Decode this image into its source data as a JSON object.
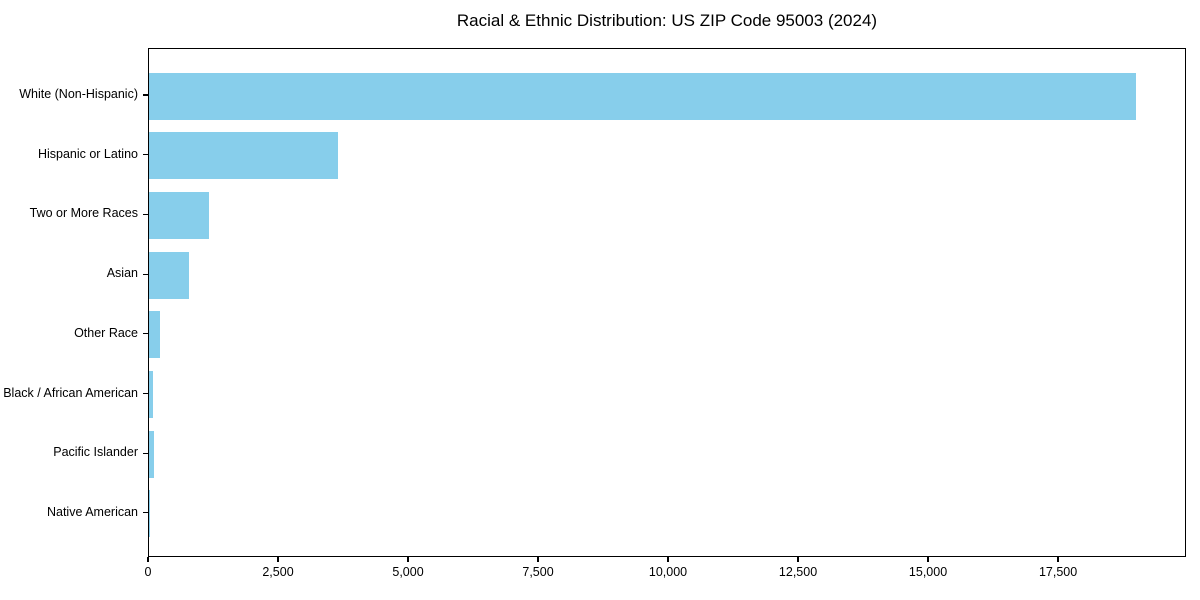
{
  "chart_data": {
    "type": "bar",
    "orientation": "horizontal",
    "title": "Racial & Ethnic Distribution: US ZIP Code 95003 (2024)",
    "categories": [
      "White (Non-Hispanic)",
      "Hispanic or Latino",
      "Two or More Races",
      "Asian",
      "Other Race",
      "Black / African American",
      "Pacific Islander",
      "Native American"
    ],
    "values": [
      19010,
      3650,
      1150,
      765,
      220,
      80,
      100,
      10
    ],
    "xlabel": "",
    "ylabel": "",
    "xlim": [
      0,
      19960
    ],
    "x_ticks": [
      0,
      2500,
      5000,
      7500,
      10000,
      12500,
      15000,
      17500
    ],
    "x_tick_labels": [
      "0",
      "2,500",
      "5,000",
      "7,500",
      "10,000",
      "12,500",
      "15,000",
      "17,500"
    ],
    "bar_color": "#87CEEB",
    "grid": false,
    "legend": null
  },
  "colors": {
    "background": "#FFFFFF",
    "bar": "#87CEEB",
    "text": "#000000",
    "spine": "#000000"
  }
}
